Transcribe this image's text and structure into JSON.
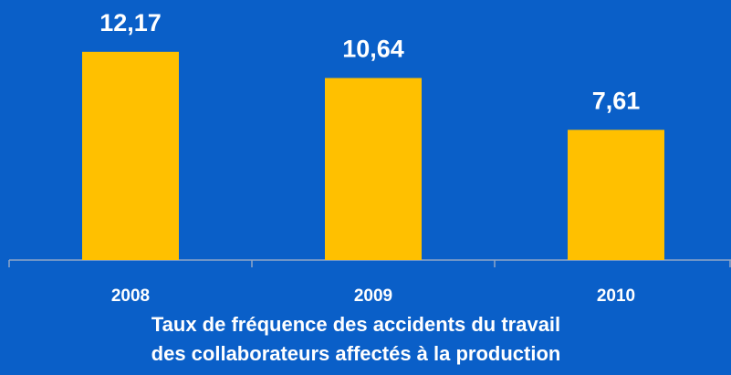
{
  "chart_data": {
    "type": "bar",
    "categories": [
      "2008",
      "2009",
      "2010"
    ],
    "values": [
      12.17,
      10.64,
      7.61
    ],
    "value_labels": [
      "12,17",
      "10,64",
      "7,61"
    ],
    "color": "#ffc000",
    "caption": [
      "Taux de fréquence des accidents du travail",
      "des collaborateurs affectés à la production"
    ]
  }
}
